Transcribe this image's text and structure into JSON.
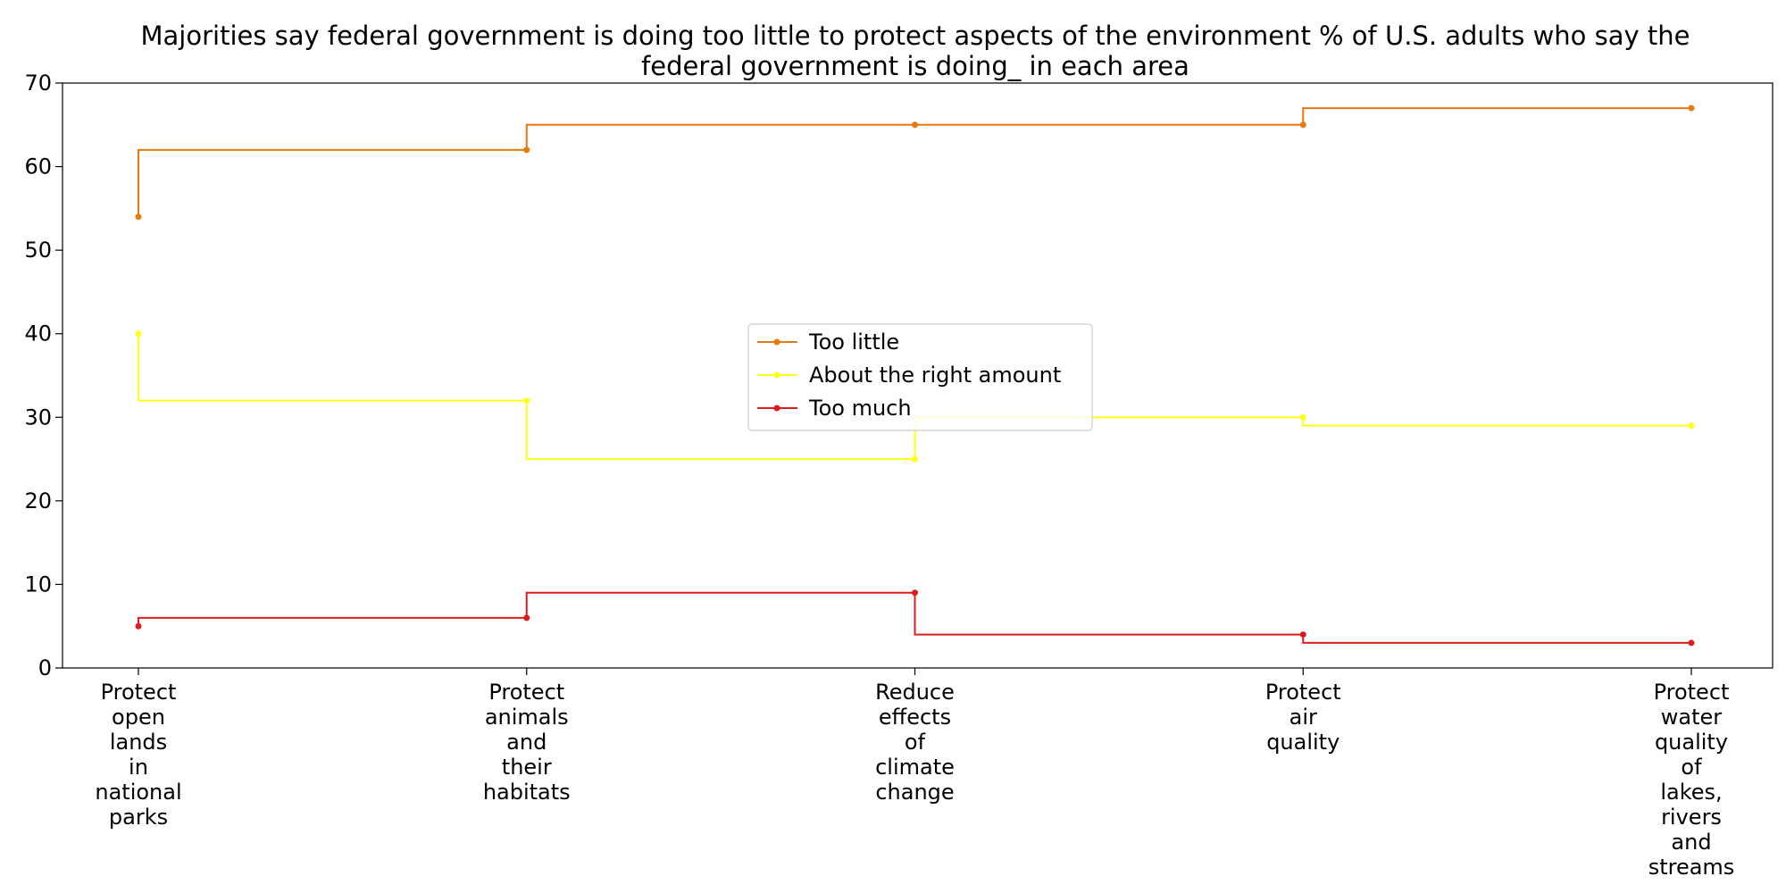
{
  "chart_data": {
    "type": "line",
    "step": "post",
    "title": "Majorities say federal government is doing too little to protect aspects of the environment % of U.S. adults who say the federal government is doing_ in each area",
    "xlabel": "",
    "ylabel": "",
    "ylim": [
      0,
      70
    ],
    "yticks": [
      "0",
      "10",
      "20",
      "30",
      "40",
      "50",
      "60",
      "70"
    ],
    "grid": false,
    "legend_position": "center",
    "categories": [
      "Protect open lands in national parks",
      "Protect animals and their habitats",
      "Reduce effects of climate change",
      "Protect air quality",
      "Protect water quality of lakes, rivers and streams"
    ],
    "series": [
      {
        "name": "Too little",
        "color": "#e8790e",
        "values": [
          54,
          62,
          65,
          65,
          67
        ]
      },
      {
        "name": "About the right amount",
        "color": "#ffff1a",
        "values": [
          40,
          32,
          25,
          30,
          29
        ]
      },
      {
        "name": "Too much",
        "color": "#dd1c1c",
        "values": [
          5,
          6,
          9,
          4,
          3
        ]
      }
    ]
  }
}
